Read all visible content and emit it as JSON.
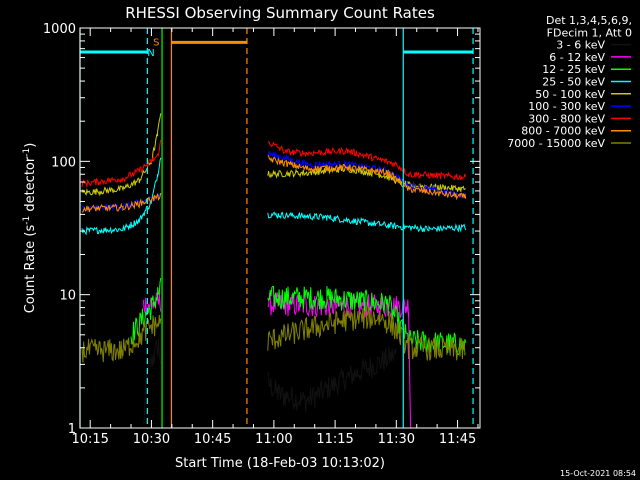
{
  "chart_data": {
    "type": "line",
    "title": "RHESSI Observing Summary Count Rates",
    "xlabel": "Start Time (18-Feb-03 10:13:02)",
    "ylabel_main": "Count Rate (s",
    "ylabel_sup1": "-1",
    "ylabel_mid": " detector",
    "ylabel_sup2": "-1",
    "ylabel_end": ")",
    "y_scale": "log",
    "ylim": [
      1,
      1000
    ],
    "xlim_minutes": [
      -0.5,
      97.5
    ],
    "x_ticks": [
      {
        "min": 2,
        "label": "10:15"
      },
      {
        "min": 17,
        "label": "10:30"
      },
      {
        "min": 32,
        "label": "10:45"
      },
      {
        "min": 47,
        "label": "11:00"
      },
      {
        "min": 62,
        "label": "11:15"
      },
      {
        "min": 77,
        "label": "11:30"
      },
      {
        "min": 92,
        "label": "11:45"
      }
    ],
    "y_ticks": [
      {
        "value": 1,
        "label": "1"
      },
      {
        "value": 10,
        "label": "10"
      },
      {
        "value": 100,
        "label": "100"
      },
      {
        "value": 1000,
        "label": "1000"
      }
    ],
    "legend_header": [
      "Det 1,3,4,5,6,9,",
      "FDecim 1, Att 0"
    ],
    "legend_position": "right",
    "series": [
      {
        "name": "3 - 6 keV",
        "color": "#000000",
        "points": [
          [
            15,
            1
          ],
          [
            16,
            2.6
          ],
          [
            17.5,
            3.4
          ],
          [
            18.7,
            4.2
          ],
          [
            19.3,
            3.2
          ],
          [
            45.5,
            2.2
          ],
          [
            48,
            1.8
          ],
          [
            55,
            1.6
          ],
          [
            65,
            2.4
          ],
          [
            74,
            3.2
          ],
          [
            77,
            3.6
          ]
        ]
      },
      {
        "name": "6 - 12 keV",
        "color": "#ff00ff",
        "points": [
          [
            15,
            8.5
          ],
          [
            18,
            8.5
          ],
          [
            19.3,
            9
          ],
          [
            45.5,
            8.5
          ],
          [
            60,
            8.2
          ],
          [
            75,
            8.2
          ],
          [
            80,
            8.2
          ],
          [
            80.5,
            1
          ]
        ]
      },
      {
        "name": "12 - 25 keV",
        "color": "#00ff00",
        "points": [
          [
            12,
            5
          ],
          [
            17,
            8
          ],
          [
            18.5,
            10
          ],
          [
            19.3,
            11
          ],
          [
            45.5,
            9.5
          ],
          [
            60,
            9.5
          ],
          [
            75,
            8.5
          ],
          [
            80,
            4.5
          ],
          [
            94,
            4.2
          ]
        ]
      },
      {
        "name": "25 - 50 keV",
        "color": "#00ffff",
        "points": [
          [
            0,
            30
          ],
          [
            10,
            31
          ],
          [
            14,
            36
          ],
          [
            17,
            50
          ],
          [
            18.5,
            80
          ],
          [
            19.3,
            110
          ],
          [
            45.5,
            40
          ],
          [
            60,
            38
          ],
          [
            75,
            33
          ],
          [
            85,
            31
          ],
          [
            94,
            32
          ]
        ]
      },
      {
        "name": "50 - 100 keV",
        "color": "#cccc00",
        "points": [
          [
            0,
            58
          ],
          [
            10,
            62
          ],
          [
            14,
            72
          ],
          [
            17,
            100
          ],
          [
            18.5,
            160
          ],
          [
            19.3,
            240
          ],
          [
            45.5,
            80
          ],
          [
            55,
            82
          ],
          [
            65,
            88
          ],
          [
            73,
            80
          ],
          [
            77,
            72
          ],
          [
            80,
            66
          ],
          [
            94,
            62
          ]
        ]
      },
      {
        "name": "100 - 300 keV",
        "color": "#0000ff",
        "points": [
          [
            0,
            44
          ],
          [
            10,
            46
          ],
          [
            14,
            49
          ],
          [
            17,
            52
          ],
          [
            19.3,
            56
          ],
          [
            45.5,
            115
          ],
          [
            55,
            95
          ],
          [
            65,
            95
          ],
          [
            75,
            85
          ],
          [
            80,
            66
          ],
          [
            94,
            55
          ]
        ]
      },
      {
        "name": "300 - 800 keV",
        "color": "#ff0000",
        "points": [
          [
            0,
            68
          ],
          [
            10,
            74
          ],
          [
            14,
            85
          ],
          [
            17,
            100
          ],
          [
            18.5,
            110
          ],
          [
            19.3,
            140
          ],
          [
            45.5,
            140
          ],
          [
            50,
            118
          ],
          [
            55,
            115
          ],
          [
            65,
            120
          ],
          [
            72,
            105
          ],
          [
            77,
            95
          ],
          [
            80,
            80
          ],
          [
            94,
            76
          ]
        ]
      },
      {
        "name": "800 - 7000 keV",
        "color": "#ff8c00",
        "points": [
          [
            0,
            44
          ],
          [
            10,
            45
          ],
          [
            14,
            48
          ],
          [
            17,
            52
          ],
          [
            19.3,
            55
          ],
          [
            45.5,
            105
          ],
          [
            55,
            88
          ],
          [
            65,
            90
          ],
          [
            75,
            82
          ],
          [
            80,
            62
          ],
          [
            94,
            54
          ]
        ]
      },
      {
        "name": "7000 - 15000 keV",
        "color": "#808000",
        "points": [
          [
            0,
            3.8
          ],
          [
            10,
            3.8
          ],
          [
            14,
            4.8
          ],
          [
            17,
            5.8
          ],
          [
            19.3,
            6.2
          ],
          [
            45.5,
            4.5
          ],
          [
            55,
            5.5
          ],
          [
            65,
            6.5
          ],
          [
            73,
            6.8
          ],
          [
            77,
            5.5
          ],
          [
            80,
            4
          ],
          [
            94,
            3.8
          ]
        ]
      }
    ],
    "annotations": [
      {
        "type": "vline",
        "min": -0.5,
        "color": "#00ffff",
        "style": "solid"
      },
      {
        "type": "vline",
        "min": 16,
        "color": "#00ffff",
        "style": "dashed"
      },
      {
        "type": "vline",
        "min": 19.6,
        "color": "#00ff00",
        "style": "solid"
      },
      {
        "type": "vline",
        "min": 21.9,
        "color": "#ff8c00",
        "style": "solid"
      },
      {
        "type": "vline",
        "min": 40.4,
        "color": "#ff8c00",
        "style": "dashed"
      },
      {
        "type": "vline",
        "min": 78.7,
        "color": "#00ffff",
        "style": "solid"
      },
      {
        "type": "vline",
        "min": 95.8,
        "color": "#00ffff",
        "style": "dashed"
      },
      {
        "type": "hbar",
        "from": -0.5,
        "to": 16,
        "value": 660,
        "color": "#00ffff",
        "label": ""
      },
      {
        "type": "hbar",
        "from": 22,
        "to": 40.4,
        "value": 780,
        "color": "#ff8c00",
        "label": ""
      },
      {
        "type": "hbar",
        "from": 78.7,
        "to": 95.8,
        "value": 660,
        "color": "#00ffff",
        "label": ""
      },
      {
        "type": "marker",
        "min": 18.2,
        "value": 790,
        "color": "#ff8c00",
        "label": "S"
      },
      {
        "type": "marker",
        "min": 16.9,
        "value": 660,
        "color": "#00ffff",
        "label": "N"
      }
    ]
  },
  "footer_timestamp": "15-Oct-2021 08:54"
}
